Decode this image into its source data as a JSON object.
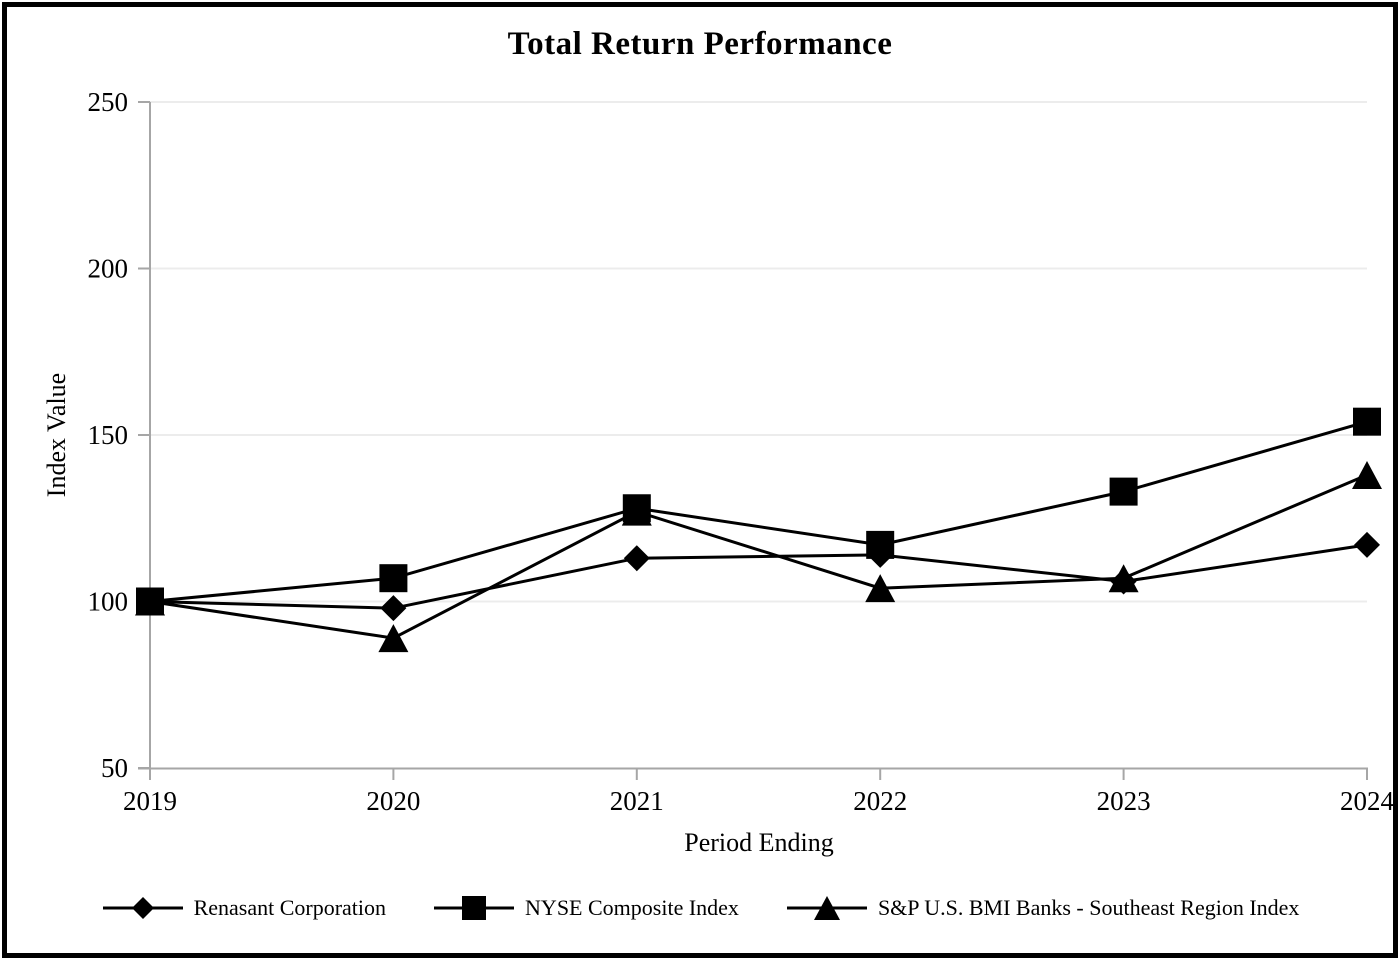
{
  "chart": {
    "title": "Total Return Performance",
    "xlabel": "Period Ending",
    "ylabel": "Index Value"
  },
  "chart_data": {
    "type": "line",
    "title": "Total Return Performance",
    "xlabel": "Period Ending",
    "ylabel": "Index Value",
    "categories": [
      "2019",
      "2020",
      "2021",
      "2022",
      "2023",
      "2024"
    ],
    "ylim": [
      50,
      250
    ],
    "yticks": [
      50,
      100,
      150,
      200,
      250
    ],
    "grid": "horizontal-major",
    "legend_position": "bottom",
    "series": [
      {
        "name": "Renasant Corporation",
        "marker": "diamond",
        "color": "#000000",
        "values": [
          100,
          98,
          113,
          114,
          106,
          117
        ]
      },
      {
        "name": "NYSE Composite Index",
        "marker": "square",
        "color": "#000000",
        "values": [
          100,
          107,
          128,
          117,
          133,
          154
        ]
      },
      {
        "name": "S&P U.S. BMI Banks - Southeast Region Index",
        "marker": "triangle",
        "color": "#000000",
        "values": [
          100,
          89,
          127,
          104,
          107,
          138
        ]
      }
    ],
    "colors": {
      "axis": "#a6a6a6",
      "gridline": "#ececec",
      "series": "#000000"
    }
  }
}
